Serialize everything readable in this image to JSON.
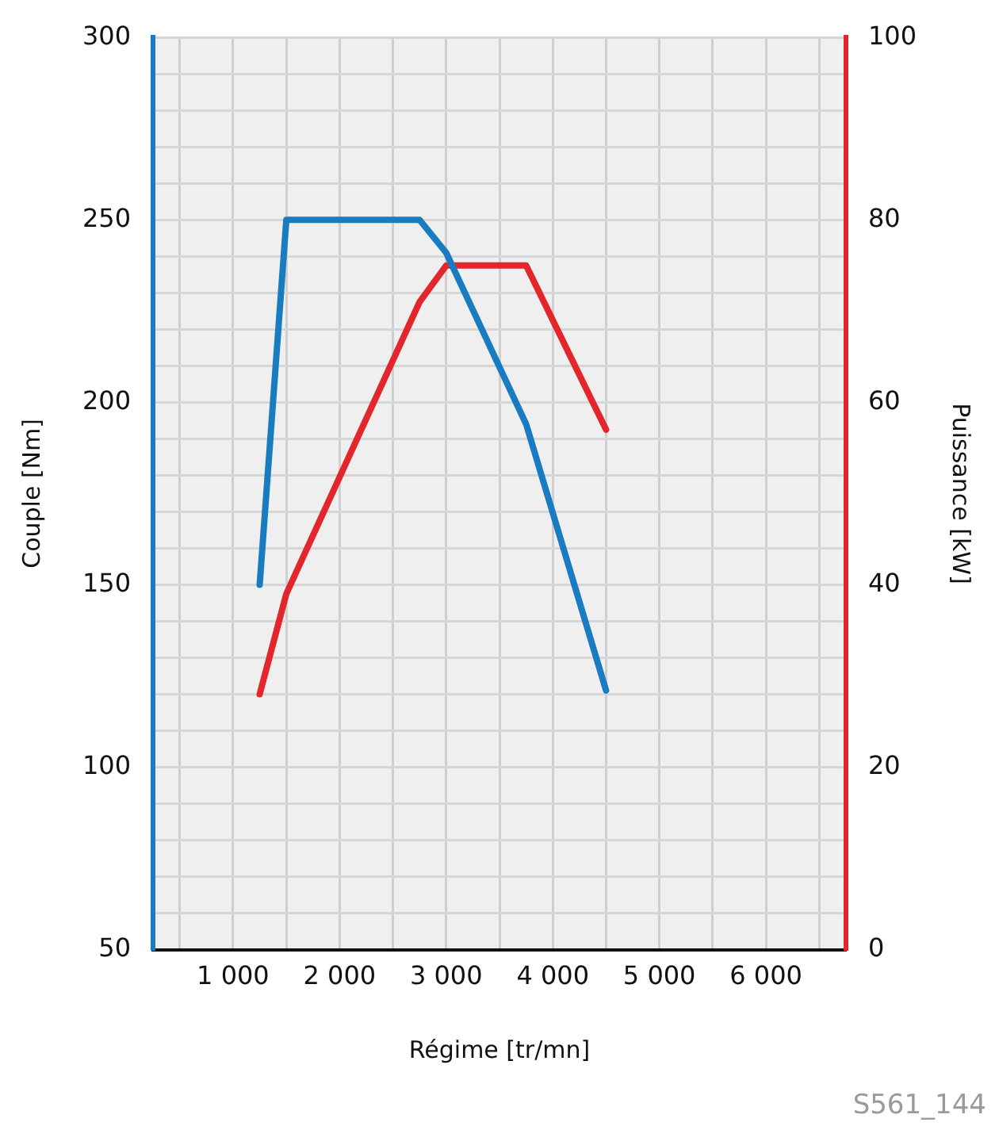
{
  "chart_data": {
    "type": "line",
    "xlabel": "Régime [tr/mn]",
    "ylabel": "Couple [Nm]",
    "y2label": "Puissance [kW]",
    "annotations": [
      "S561_144"
    ],
    "xlim": [
      250,
      6750
    ],
    "xticks": [
      {
        "value": 500,
        "label": null
      },
      {
        "value": 1000,
        "label": "1 000"
      },
      {
        "value": 1500,
        "label": null
      },
      {
        "value": 2000,
        "label": "2 000"
      },
      {
        "value": 2500,
        "label": null
      },
      {
        "value": 3000,
        "label": "3 000"
      },
      {
        "value": 3500,
        "label": null
      },
      {
        "value": 4000,
        "label": "4 000"
      },
      {
        "value": 4500,
        "label": null
      },
      {
        "value": 5000,
        "label": "5 000"
      },
      {
        "value": 5500,
        "label": null
      },
      {
        "value": 6000,
        "label": "6 000"
      },
      {
        "value": 6500,
        "label": null
      }
    ],
    "ylim": [
      50,
      300
    ],
    "yticks": [
      50,
      {
        "value": 60,
        "label": null
      },
      {
        "value": 70,
        "label": null
      },
      {
        "value": 80,
        "label": null
      },
      {
        "value": 90,
        "label": null
      },
      100,
      {
        "value": 110,
        "label": null
      },
      {
        "value": 120,
        "label": null
      },
      {
        "value": 130,
        "label": null
      },
      {
        "value": 140,
        "label": null
      },
      150,
      {
        "value": 160,
        "label": null
      },
      {
        "value": 170,
        "label": null
      },
      {
        "value": 180,
        "label": null
      },
      {
        "value": 190,
        "label": null
      },
      200,
      {
        "value": 210,
        "label": null
      },
      {
        "value": 220,
        "label": null
      },
      {
        "value": 230,
        "label": null
      },
      {
        "value": 240,
        "label": null
      },
      250,
      {
        "value": 260,
        "label": null
      },
      {
        "value": 270,
        "label": null
      },
      {
        "value": 280,
        "label": null
      },
      {
        "value": 290,
        "label": null
      },
      300
    ],
    "y2lim": [
      0,
      100
    ],
    "y2ticks": [
      0,
      20,
      40,
      60,
      80,
      100
    ],
    "grid": true,
    "legend": false,
    "marker": "none",
    "line_style": "solid",
    "series": [
      {
        "color": "#1a7cc0",
        "x": [
          1250,
          1500,
          2750,
          3000,
          3750,
          4500
        ],
        "values": [
          150,
          250,
          250,
          241,
          194,
          121
        ]
      },
      {
        "color": "#e3262b",
        "axis": "y2",
        "x": [
          1250,
          1500,
          2750,
          3000,
          3750,
          4500
        ],
        "values": [
          28,
          39,
          71,
          75,
          75,
          57
        ]
      }
    ]
  }
}
